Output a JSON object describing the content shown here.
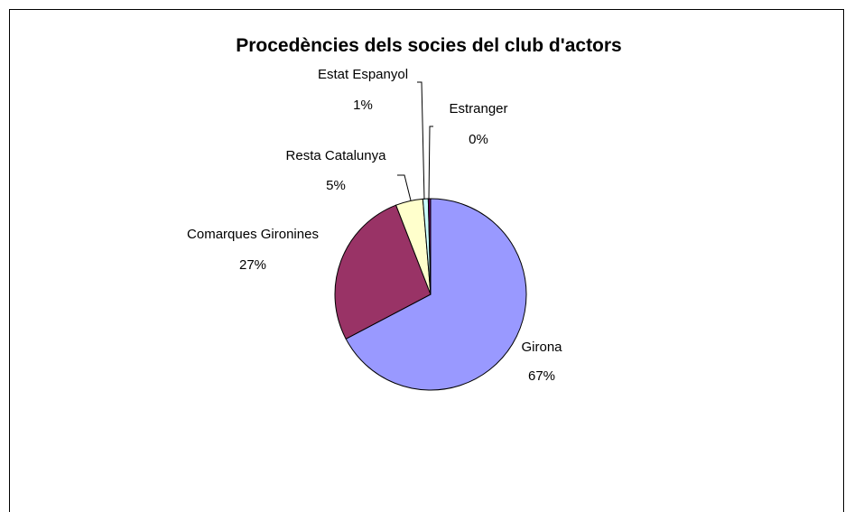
{
  "chart_data": {
    "type": "pie",
    "title": "Procedències dels socies del club d'actors",
    "slices": [
      {
        "label": "Girona",
        "pct_label": "67%",
        "value": 67.3,
        "color": "#9999ff"
      },
      {
        "label": "Comarques Gironines",
        "pct_label": "27%",
        "value": 26.8,
        "color": "#993366"
      },
      {
        "label": "Resta Catalunya",
        "pct_label": "5%",
        "value": 4.6,
        "color": "#ffffcc"
      },
      {
        "label": "Estat Espanyol",
        "pct_label": "1%",
        "value": 0.9,
        "color": "#ccffff"
      },
      {
        "label": "Estranger",
        "pct_label": "0%",
        "value": 0.4,
        "color": "#660066"
      }
    ],
    "legend": "none",
    "start_angle_deg": 0,
    "direction": "clockwise"
  }
}
